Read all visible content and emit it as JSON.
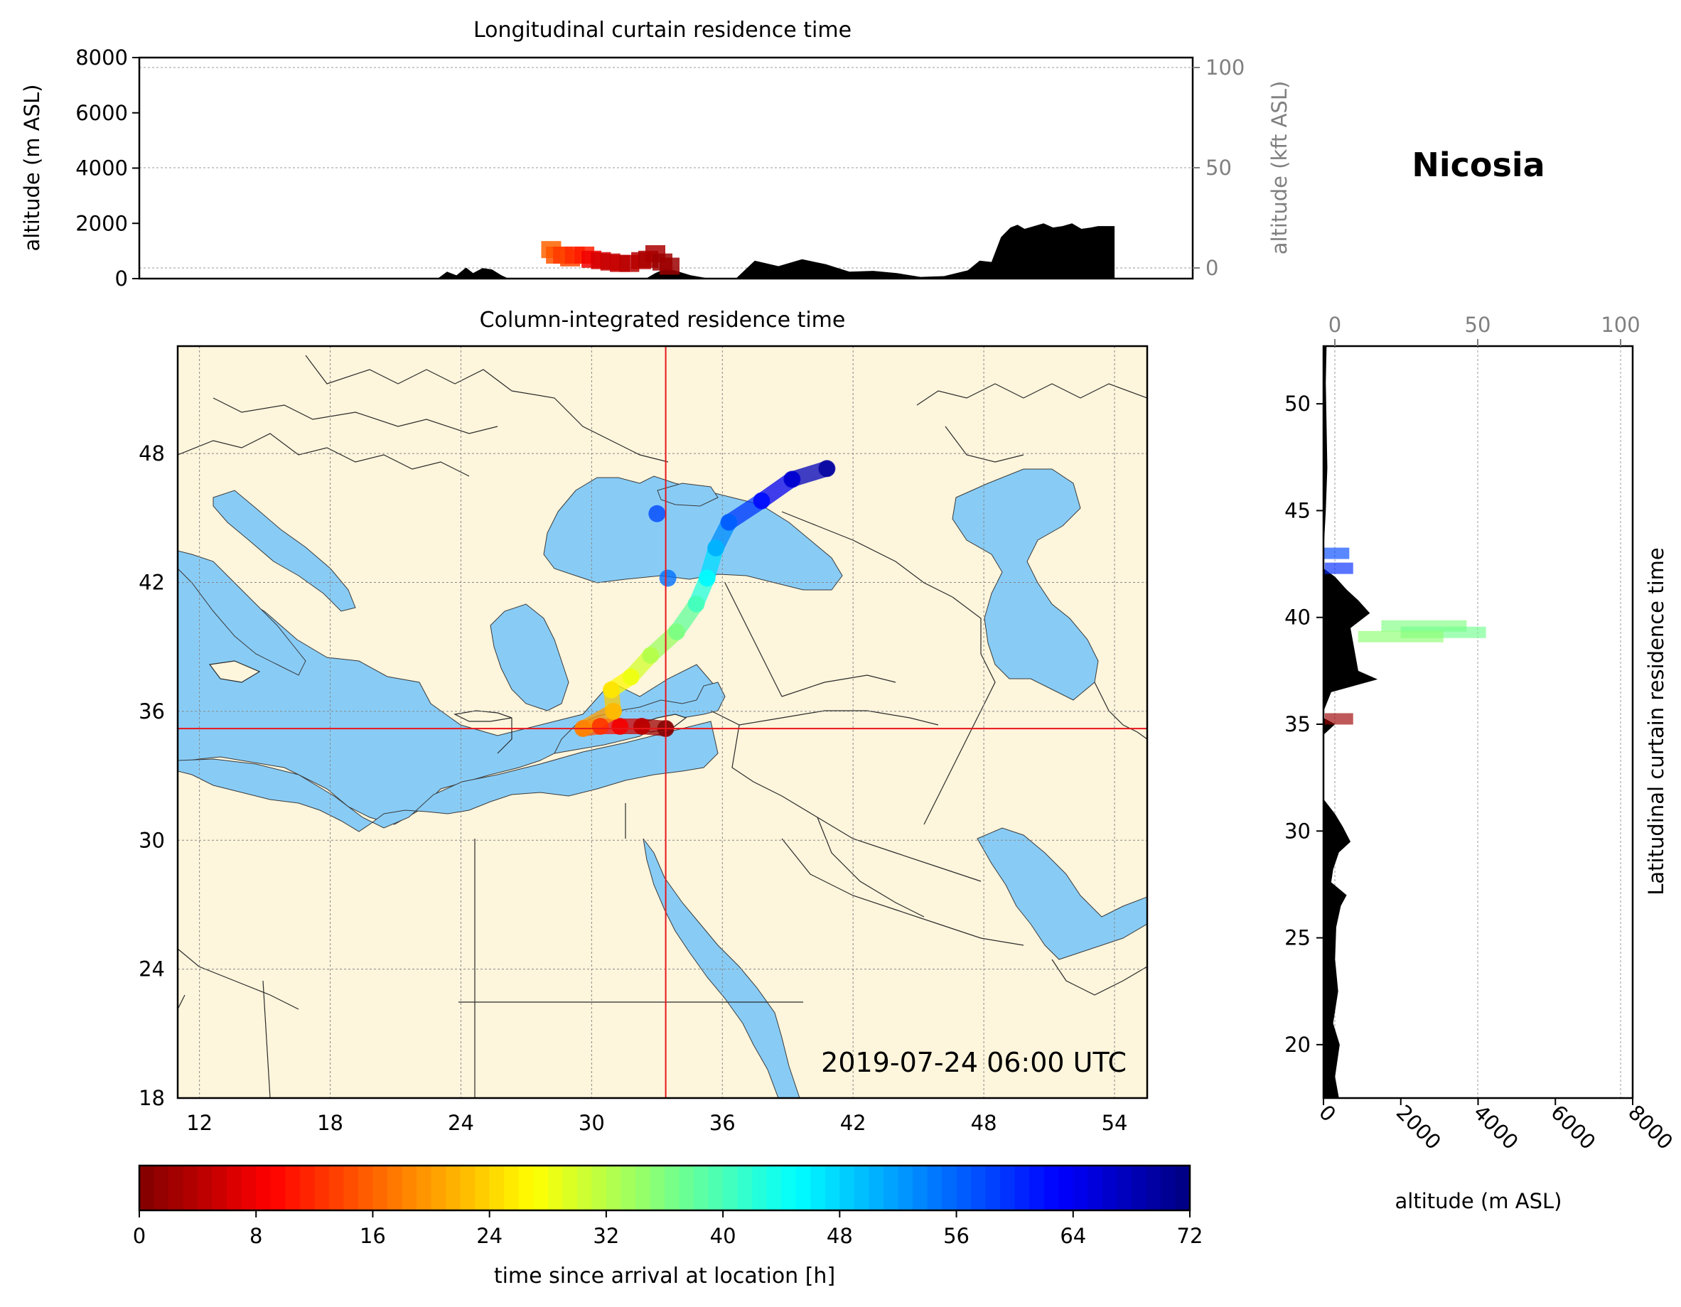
{
  "location_name": "Nicosia",
  "colors": {
    "sea": "#88ccf6",
    "land": "#fdf5dc",
    "terrain": "#000000",
    "marker": "#e8151b",
    "secondary_axis": "#808080"
  },
  "chart_data": [
    {
      "type": "area",
      "title": "Longitudinal curtain residence time",
      "xlabel": "",
      "ylabel": "altitude (m ASL)",
      "ylim": [
        0,
        8000
      ],
      "yticks": [
        "0",
        "2000",
        "4000",
        "6000",
        "8000"
      ],
      "secondary_ylabel": "altitude (kft ASL)",
      "secondary_yticks": [
        "0",
        "50",
        "100"
      ],
      "grid": true,
      "xlim": [
        11,
        55.5
      ],
      "terrain": {
        "x": [
          11,
          23.6,
          24.0,
          24.4,
          24.8,
          25.1,
          25.5,
          25.9,
          26.3,
          26.6,
          27.0,
          27.6,
          28.5,
          30.5,
          31.5,
          32.0,
          32.4,
          32.8,
          33.2,
          33.6,
          34.3,
          35.1,
          35.4,
          35.7,
          36.2,
          37.0,
          38.0,
          39.0,
          40.0,
          41.0,
          42.0,
          43.0,
          44.0,
          45.0,
          46.0,
          46.5,
          47.0,
          47.4,
          47.8,
          48.1,
          48.4,
          48.8,
          49.2,
          49.6,
          50.0,
          50.4,
          50.8,
          51.2,
          51.5,
          52.0,
          52.2,
          52.2,
          55.5
        ],
        "altitude_m": [
          0,
          0,
          250,
          120,
          400,
          200,
          380,
          330,
          120,
          0,
          0,
          0,
          0,
          0,
          0,
          0,
          0,
          200,
          350,
          300,
          120,
          0,
          0,
          0,
          0,
          650,
          450,
          700,
          520,
          250,
          280,
          200,
          60,
          90,
          300,
          650,
          600,
          1500,
          1850,
          1950,
          1800,
          1900,
          2000,
          1850,
          1900,
          2000,
          1800,
          1850,
          1900,
          1900,
          1900,
          0,
          0
        ]
      },
      "plume": [
        {
          "lon": 28.4,
          "alt_m": 1050,
          "age_h": 16
        },
        {
          "lon": 28.6,
          "alt_m": 850,
          "age_h": 15
        },
        {
          "lon": 28.9,
          "alt_m": 850,
          "age_h": 13
        },
        {
          "lon": 29.2,
          "alt_m": 750,
          "age_h": 14
        },
        {
          "lon": 29.4,
          "alt_m": 850,
          "age_h": 12
        },
        {
          "lon": 29.8,
          "alt_m": 850,
          "age_h": 11
        },
        {
          "lon": 30.1,
          "alt_m": 700,
          "age_h": 8
        },
        {
          "lon": 30.5,
          "alt_m": 650,
          "age_h": 6
        },
        {
          "lon": 30.9,
          "alt_m": 600,
          "age_h": 5
        },
        {
          "lon": 31.3,
          "alt_m": 550,
          "age_h": 5
        },
        {
          "lon": 31.7,
          "alt_m": 550,
          "age_h": 4
        },
        {
          "lon": 32.2,
          "alt_m": 650,
          "age_h": 4
        },
        {
          "lon": 32.5,
          "alt_m": 700,
          "age_h": 3
        },
        {
          "lon": 32.8,
          "alt_m": 900,
          "age_h": 3
        },
        {
          "lon": 33.1,
          "alt_m": 600,
          "age_h": 2
        },
        {
          "lon": 33.4,
          "alt_m": 450,
          "age_h": 2
        }
      ]
    },
    {
      "type": "heatmap",
      "title": "Column-integrated residence time",
      "xlim": [
        11,
        55.5
      ],
      "ylim": [
        18,
        53
      ],
      "xticks": [
        "12",
        "18",
        "24",
        "30",
        "36",
        "42",
        "48",
        "54"
      ],
      "yticks": [
        "18",
        "24",
        "30",
        "36",
        "42",
        "48"
      ],
      "grid": true,
      "annotation": "2019-07-24 06:00 UTC",
      "release_point": {
        "lon": 33.4,
        "lat": 35.2
      },
      "trajectory": [
        {
          "lon": 29.6,
          "lat": 35.2,
          "age_h": 18
        },
        {
          "lon": 30.4,
          "lat": 35.3,
          "age_h": 12
        },
        {
          "lon": 31.3,
          "lat": 35.3,
          "age_h": 8
        },
        {
          "lon": 32.3,
          "lat": 35.3,
          "age_h": 4
        },
        {
          "lon": 33.4,
          "lat": 35.2,
          "age_h": 0
        },
        {
          "lon": 31.0,
          "lat": 36.0,
          "age_h": 22
        },
        {
          "lon": 30.9,
          "lat": 37.0,
          "age_h": 25
        },
        {
          "lon": 31.8,
          "lat": 37.6,
          "age_h": 28
        },
        {
          "lon": 32.7,
          "lat": 38.6,
          "age_h": 32
        },
        {
          "lon": 33.9,
          "lat": 39.7,
          "age_h": 36
        },
        {
          "lon": 34.8,
          "lat": 41.0,
          "age_h": 40
        },
        {
          "lon": 35.3,
          "lat": 42.2,
          "age_h": 45
        },
        {
          "lon": 35.7,
          "lat": 43.6,
          "age_h": 50
        },
        {
          "lon": 36.3,
          "lat": 44.8,
          "age_h": 56
        },
        {
          "lon": 37.8,
          "lat": 45.8,
          "age_h": 62
        },
        {
          "lon": 39.2,
          "lat": 46.8,
          "age_h": 66
        },
        {
          "lon": 40.8,
          "lat": 47.3,
          "age_h": 70
        },
        {
          "lon": 33.5,
          "lat": 42.2,
          "age_h": 55
        },
        {
          "lon": 33.0,
          "lat": 45.2,
          "age_h": 58
        }
      ]
    },
    {
      "type": "area",
      "title": "",
      "xlabel": "altitude (m ASL)",
      "ylabel": "Latitudinal curtain residence time",
      "xlim": [
        0,
        8000
      ],
      "xticks": [
        "0",
        "2000",
        "4000",
        "6000",
        "8000"
      ],
      "secondary_xticks": [
        "0",
        "50",
        "100"
      ],
      "yticks": [
        "20",
        "25",
        "30",
        "35",
        "40",
        "45",
        "50"
      ],
      "ylim": [
        17.5,
        52.7
      ],
      "grid": true,
      "terrain": {
        "lat": [
          17.5,
          18.5,
          20,
          21,
          22.5,
          24,
          25.5,
          26.5,
          27,
          27.6,
          28.2,
          29,
          29.5,
          30.2,
          30.8,
          31.5,
          32.2,
          33.5,
          34.5,
          35.0,
          35.3,
          35.6,
          36.5,
          37.1,
          37.5,
          38.5,
          39.5,
          40.2,
          40.8,
          41.3,
          41.9,
          42.3,
          43,
          45,
          47,
          49,
          51,
          52.7
        ],
        "altitude_m": [
          400,
          300,
          420,
          250,
          380,
          300,
          330,
          450,
          600,
          200,
          250,
          400,
          700,
          500,
          300,
          0,
          0,
          0,
          0,
          300,
          0,
          0,
          200,
          1400,
          900,
          800,
          700,
          1200,
          900,
          600,
          300,
          0,
          0,
          60,
          100,
          80,
          60,
          80
        ]
      },
      "plume": [
        {
          "lat": 42.3,
          "alt_m": 400,
          "age_h": 60
        },
        {
          "lat": 43.0,
          "alt_m": 300,
          "age_h": 58
        },
        {
          "lat": 39.6,
          "alt_m": 2600,
          "age_h": 36
        },
        {
          "lat": 39.3,
          "alt_m": 3100,
          "age_h": 37
        },
        {
          "lat": 39.1,
          "alt_m": 2000,
          "age_h": 35
        },
        {
          "lat": 35.25,
          "alt_m": 400,
          "age_h": 2
        }
      ]
    },
    {
      "type": "heatmap",
      "title": "colorbar",
      "xlabel": "time since arrival at location [h]",
      "xlim": [
        0,
        72
      ],
      "xticks": [
        "0",
        "8",
        "16",
        "24",
        "32",
        "40",
        "48",
        "56",
        "64",
        "72"
      ],
      "colormap": "jet_r"
    }
  ]
}
